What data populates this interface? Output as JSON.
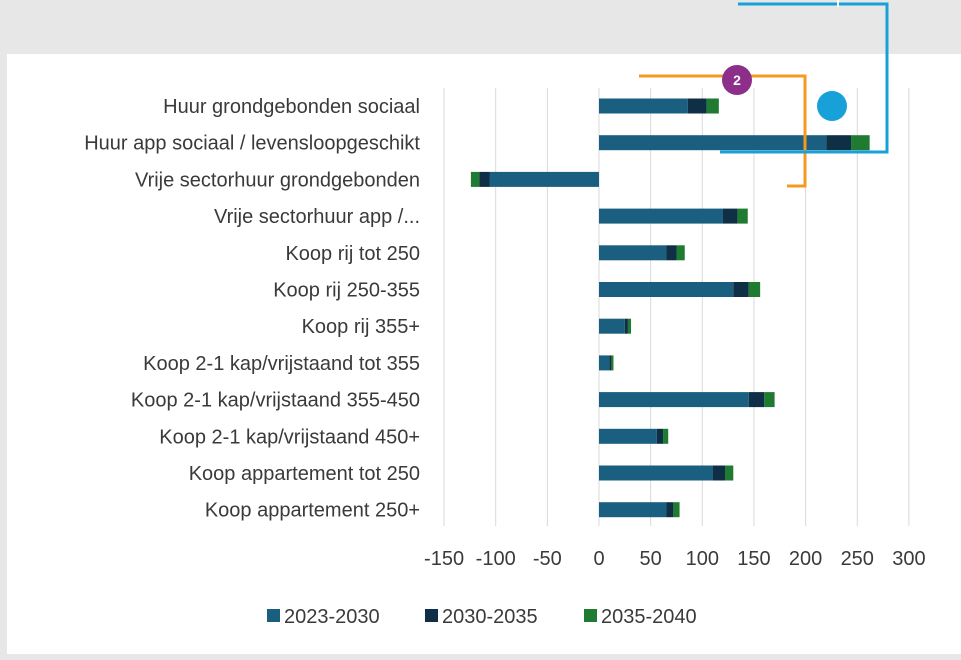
{
  "colors": {
    "s2023": "#1a5f80",
    "s2030": "#0e2f45",
    "s2035": "#1f7a32",
    "grid": "#d9d9d9",
    "orange": "#f39a1f",
    "blue": "#18a0d8",
    "purple": "#8d2e8a"
  },
  "annotations": {
    "badge_number": "2"
  },
  "chart_data": {
    "type": "bar",
    "orientation": "horizontal",
    "stacked": true,
    "title": "",
    "xlabel": "",
    "ylabel": "",
    "xlim": [
      -150,
      300
    ],
    "xticks": [
      -150,
      -100,
      -50,
      0,
      50,
      100,
      150,
      200,
      250,
      300
    ],
    "xtick_labels": [
      "-150",
      "-100",
      "-50",
      "0",
      "50",
      "100",
      "150",
      "200",
      "250",
      "300"
    ],
    "grid": true,
    "legend_position": "bottom",
    "categories": [
      "Huur grondgebonden sociaal",
      "Huur app sociaal / levensloopgeschikt",
      "Vrije sectorhuur grondgebonden",
      "Vrije sectorhuur app /...",
      "Koop rij tot 250",
      "Koop rij 250-355",
      "Koop rij 355+",
      "Koop 2-1 kap/vrijstaand tot 355",
      "Koop 2-1 kap/vrijstaand 355-450",
      "Koop 2-1 kap/vrijstaand 450+",
      "Koop appartement tot 250",
      "Koop appartement 250+"
    ],
    "series": [
      {
        "name": "2023-2030",
        "color": "#1a5f80",
        "values": [
          86,
          220,
          -106,
          120,
          65,
          130,
          25,
          10,
          145,
          56,
          110,
          65
        ]
      },
      {
        "name": "2030-2035",
        "color": "#0e2f45",
        "values": [
          18,
          24,
          -10,
          14,
          10,
          15,
          3,
          2,
          15,
          6,
          12,
          7
        ]
      },
      {
        "name": "2035-2040",
        "color": "#1f7a32",
        "values": [
          12,
          18,
          -8,
          10,
          8,
          11,
          3,
          2,
          10,
          5,
          8,
          6
        ]
      }
    ]
  }
}
